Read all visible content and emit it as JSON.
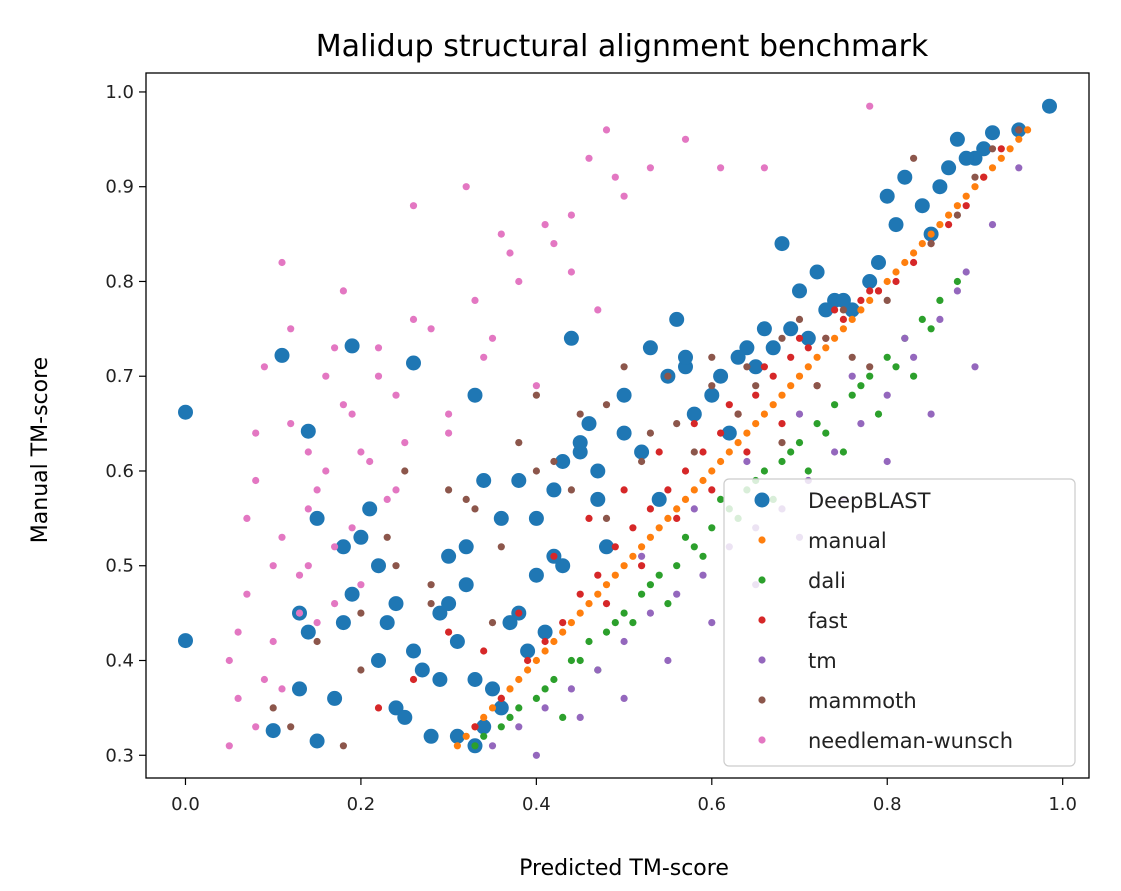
{
  "chart_data": {
    "type": "scatter",
    "title": "Malidup structural alignment benchmark",
    "xlabel": "Predicted TM-score",
    "ylabel": "Manual TM-score",
    "xlim": [
      -0.045,
      1.03
    ],
    "ylim": [
      0.276,
      1.02
    ],
    "xticks": [
      "0.0",
      "0.2",
      "0.4",
      "0.6",
      "0.8",
      "1.0"
    ],
    "xtick_values": [
      0.0,
      0.2,
      0.4,
      0.6,
      0.8,
      1.0
    ],
    "yticks": [
      "0.3",
      "0.4",
      "0.5",
      "0.6",
      "0.7",
      "0.8",
      "0.9",
      "1.0"
    ],
    "ytick_values": [
      0.3,
      0.4,
      0.5,
      0.6,
      0.7,
      0.8,
      0.9,
      1.0
    ],
    "grid": false,
    "legend_position": "lower-right",
    "series": [
      {
        "name": "DeepBLAST",
        "color": "#1f77b4",
        "marker_size": "large",
        "x": [
          0.0,
          0.0,
          0.11,
          0.19,
          0.26,
          0.14,
          0.15,
          0.21,
          0.22,
          0.18,
          0.19,
          0.13,
          0.14,
          0.1,
          0.13,
          0.15,
          0.17,
          0.18,
          0.22,
          0.24,
          0.25,
          0.27,
          0.29,
          0.3,
          0.31,
          0.32,
          0.33,
          0.34,
          0.36,
          0.38,
          0.4,
          0.42,
          0.43,
          0.45,
          0.46,
          0.47,
          0.48,
          0.5,
          0.52,
          0.53,
          0.55,
          0.56,
          0.57,
          0.58,
          0.6,
          0.62,
          0.64,
          0.66,
          0.68,
          0.7,
          0.72,
          0.74,
          0.76,
          0.78,
          0.8,
          0.82,
          0.84,
          0.86,
          0.88,
          0.9,
          0.92,
          0.95,
          0.985,
          0.31,
          0.33,
          0.35,
          0.37,
          0.39,
          0.41,
          0.44,
          0.45,
          0.28,
          0.29,
          0.3,
          0.32,
          0.36,
          0.4,
          0.43,
          0.47,
          0.5,
          0.54,
          0.57,
          0.61,
          0.63,
          0.65,
          0.67,
          0.69,
          0.71,
          0.73,
          0.75,
          0.79,
          0.81,
          0.85,
          0.87,
          0.89,
          0.91,
          0.33,
          0.34,
          0.2,
          0.23,
          0.26,
          0.24,
          0.38,
          0.42
        ],
        "y": [
          0.662,
          0.421,
          0.722,
          0.732,
          0.714,
          0.642,
          0.55,
          0.56,
          0.5,
          0.52,
          0.47,
          0.45,
          0.43,
          0.326,
          0.37,
          0.315,
          0.36,
          0.44,
          0.4,
          0.35,
          0.34,
          0.39,
          0.45,
          0.51,
          0.42,
          0.48,
          0.38,
          0.33,
          0.35,
          0.45,
          0.55,
          0.58,
          0.5,
          0.62,
          0.65,
          0.6,
          0.52,
          0.68,
          0.62,
          0.73,
          0.7,
          0.76,
          0.71,
          0.66,
          0.68,
          0.64,
          0.73,
          0.75,
          0.84,
          0.79,
          0.81,
          0.78,
          0.77,
          0.8,
          0.89,
          0.91,
          0.88,
          0.9,
          0.95,
          0.93,
          0.957,
          0.96,
          0.985,
          0.32,
          0.31,
          0.37,
          0.44,
          0.41,
          0.43,
          0.74,
          0.63,
          0.32,
          0.38,
          0.46,
          0.52,
          0.55,
          0.49,
          0.61,
          0.57,
          0.64,
          0.57,
          0.72,
          0.7,
          0.72,
          0.71,
          0.73,
          0.75,
          0.74,
          0.77,
          0.78,
          0.82,
          0.86,
          0.85,
          0.92,
          0.93,
          0.94,
          0.68,
          0.59,
          0.53,
          0.44,
          0.41,
          0.46,
          0.59,
          0.51
        ]
      },
      {
        "name": "manual",
        "color": "#ff7f0e",
        "marker_size": "small",
        "x": [
          0.31,
          0.32,
          0.33,
          0.34,
          0.35,
          0.36,
          0.37,
          0.38,
          0.39,
          0.4,
          0.41,
          0.42,
          0.43,
          0.44,
          0.45,
          0.46,
          0.47,
          0.48,
          0.49,
          0.5,
          0.51,
          0.52,
          0.53,
          0.54,
          0.55,
          0.56,
          0.57,
          0.58,
          0.59,
          0.6,
          0.61,
          0.62,
          0.63,
          0.64,
          0.65,
          0.66,
          0.67,
          0.68,
          0.69,
          0.7,
          0.71,
          0.72,
          0.73,
          0.74,
          0.75,
          0.76,
          0.77,
          0.78,
          0.79,
          0.8,
          0.81,
          0.82,
          0.83,
          0.84,
          0.85,
          0.86,
          0.87,
          0.88,
          0.89,
          0.9,
          0.91,
          0.92,
          0.93,
          0.94,
          0.95,
          0.96
        ],
        "y": [
          0.31,
          0.32,
          0.33,
          0.34,
          0.35,
          0.36,
          0.37,
          0.38,
          0.39,
          0.4,
          0.41,
          0.42,
          0.43,
          0.44,
          0.45,
          0.46,
          0.47,
          0.48,
          0.49,
          0.5,
          0.51,
          0.52,
          0.53,
          0.54,
          0.55,
          0.56,
          0.57,
          0.58,
          0.59,
          0.6,
          0.61,
          0.62,
          0.63,
          0.64,
          0.65,
          0.66,
          0.67,
          0.68,
          0.69,
          0.7,
          0.71,
          0.72,
          0.73,
          0.74,
          0.75,
          0.76,
          0.77,
          0.78,
          0.79,
          0.8,
          0.81,
          0.82,
          0.83,
          0.84,
          0.85,
          0.86,
          0.87,
          0.88,
          0.89,
          0.9,
          0.91,
          0.92,
          0.93,
          0.94,
          0.95,
          0.96
        ]
      },
      {
        "name": "dali",
        "color": "#2ca02c",
        "marker_size": "small",
        "x": [
          0.33,
          0.36,
          0.38,
          0.4,
          0.42,
          0.44,
          0.46,
          0.48,
          0.5,
          0.52,
          0.54,
          0.56,
          0.58,
          0.6,
          0.62,
          0.64,
          0.66,
          0.68,
          0.7,
          0.72,
          0.74,
          0.76,
          0.78,
          0.8,
          0.82,
          0.84,
          0.86,
          0.88,
          0.34,
          0.37,
          0.41,
          0.45,
          0.49,
          0.53,
          0.57,
          0.61,
          0.65,
          0.69,
          0.73,
          0.77,
          0.81,
          0.85,
          0.43,
          0.47,
          0.51,
          0.55,
          0.59,
          0.63,
          0.67,
          0.71,
          0.75,
          0.79,
          0.83
        ],
        "y": [
          0.31,
          0.33,
          0.35,
          0.36,
          0.38,
          0.4,
          0.42,
          0.43,
          0.45,
          0.47,
          0.49,
          0.5,
          0.52,
          0.54,
          0.56,
          0.58,
          0.6,
          0.61,
          0.63,
          0.65,
          0.67,
          0.68,
          0.7,
          0.72,
          0.74,
          0.76,
          0.78,
          0.8,
          0.32,
          0.34,
          0.37,
          0.4,
          0.44,
          0.48,
          0.53,
          0.57,
          0.59,
          0.62,
          0.64,
          0.69,
          0.71,
          0.75,
          0.34,
          0.39,
          0.44,
          0.46,
          0.51,
          0.55,
          0.57,
          0.6,
          0.62,
          0.66,
          0.7
        ]
      },
      {
        "name": "fast",
        "color": "#d62728",
        "marker_size": "small",
        "x": [
          0.33,
          0.36,
          0.39,
          0.41,
          0.43,
          0.45,
          0.47,
          0.49,
          0.51,
          0.53,
          0.55,
          0.57,
          0.59,
          0.61,
          0.63,
          0.65,
          0.67,
          0.69,
          0.71,
          0.73,
          0.75,
          0.77,
          0.79,
          0.81,
          0.83,
          0.85,
          0.87,
          0.89,
          0.91,
          0.93,
          0.95,
          0.22,
          0.26,
          0.3,
          0.34,
          0.38,
          0.42,
          0.46,
          0.5,
          0.54,
          0.58,
          0.62,
          0.66,
          0.7,
          0.74,
          0.78,
          0.48,
          0.52,
          0.56,
          0.6,
          0.64,
          0.68,
          0.72
        ],
        "y": [
          0.33,
          0.36,
          0.4,
          0.42,
          0.44,
          0.47,
          0.49,
          0.52,
          0.54,
          0.56,
          0.58,
          0.6,
          0.62,
          0.64,
          0.66,
          0.68,
          0.7,
          0.72,
          0.73,
          0.74,
          0.76,
          0.78,
          0.79,
          0.8,
          0.82,
          0.84,
          0.86,
          0.88,
          0.91,
          0.94,
          0.96,
          0.35,
          0.38,
          0.43,
          0.41,
          0.45,
          0.51,
          0.55,
          0.58,
          0.62,
          0.65,
          0.67,
          0.71,
          0.74,
          0.77,
          0.79,
          0.46,
          0.5,
          0.55,
          0.58,
          0.62,
          0.65,
          0.69
        ]
      },
      {
        "name": "tm",
        "color": "#9467bd",
        "marker_size": "small",
        "x": [
          0.35,
          0.38,
          0.41,
          0.44,
          0.47,
          0.5,
          0.53,
          0.56,
          0.59,
          0.62,
          0.65,
          0.68,
          0.71,
          0.74,
          0.77,
          0.8,
          0.83,
          0.86,
          0.89,
          0.92,
          0.95,
          0.4,
          0.45,
          0.5,
          0.55,
          0.6,
          0.65,
          0.7,
          0.75,
          0.8,
          0.85,
          0.9,
          0.52,
          0.58,
          0.64,
          0.7,
          0.76,
          0.82,
          0.88
        ],
        "y": [
          0.31,
          0.33,
          0.35,
          0.37,
          0.39,
          0.42,
          0.45,
          0.47,
          0.49,
          0.52,
          0.54,
          0.56,
          0.59,
          0.62,
          0.65,
          0.68,
          0.72,
          0.76,
          0.81,
          0.86,
          0.92,
          0.3,
          0.34,
          0.36,
          0.4,
          0.44,
          0.48,
          0.53,
          0.57,
          0.61,
          0.66,
          0.71,
          0.51,
          0.56,
          0.61,
          0.66,
          0.7,
          0.74,
          0.79
        ]
      },
      {
        "name": "mammoth",
        "color": "#8c564b",
        "marker_size": "small",
        "x": [
          0.1,
          0.12,
          0.15,
          0.18,
          0.2,
          0.23,
          0.25,
          0.28,
          0.3,
          0.33,
          0.35,
          0.38,
          0.4,
          0.42,
          0.45,
          0.48,
          0.5,
          0.53,
          0.55,
          0.58,
          0.6,
          0.63,
          0.65,
          0.68,
          0.7,
          0.73,
          0.75,
          0.78,
          0.8,
          0.83,
          0.85,
          0.88,
          0.9,
          0.92,
          0.95,
          0.2,
          0.24,
          0.28,
          0.32,
          0.36,
          0.4,
          0.44,
          0.48,
          0.52,
          0.56,
          0.6,
          0.64,
          0.68,
          0.72,
          0.76
        ],
        "y": [
          0.35,
          0.33,
          0.42,
          0.31,
          0.45,
          0.53,
          0.6,
          0.48,
          0.58,
          0.56,
          0.44,
          0.63,
          0.68,
          0.61,
          0.66,
          0.55,
          0.71,
          0.64,
          0.7,
          0.62,
          0.72,
          0.66,
          0.69,
          0.63,
          0.76,
          0.74,
          0.77,
          0.71,
          0.78,
          0.93,
          0.84,
          0.87,
          0.91,
          0.94,
          0.96,
          0.39,
          0.5,
          0.46,
          0.57,
          0.52,
          0.6,
          0.58,
          0.67,
          0.61,
          0.65,
          0.69,
          0.71,
          0.74,
          0.69,
          0.72
        ]
      },
      {
        "name": "needleman-wunsch",
        "color": "#e377c2",
        "marker_size": "small",
        "x": [
          0.05,
          0.06,
          0.07,
          0.08,
          0.09,
          0.1,
          0.11,
          0.12,
          0.13,
          0.14,
          0.15,
          0.16,
          0.17,
          0.18,
          0.19,
          0.2,
          0.21,
          0.22,
          0.23,
          0.24,
          0.25,
          0.26,
          0.28,
          0.3,
          0.32,
          0.34,
          0.36,
          0.38,
          0.4,
          0.42,
          0.44,
          0.46,
          0.48,
          0.49,
          0.5,
          0.53,
          0.57,
          0.61,
          0.66,
          0.78,
          0.06,
          0.07,
          0.08,
          0.09,
          0.1,
          0.11,
          0.12,
          0.13,
          0.14,
          0.15,
          0.16,
          0.17,
          0.18,
          0.19,
          0.2,
          0.22,
          0.24,
          0.26,
          0.3,
          0.33,
          0.35,
          0.37,
          0.41,
          0.44,
          0.47,
          0.05,
          0.08,
          0.11,
          0.14,
          0.17
        ],
        "y": [
          0.31,
          0.43,
          0.55,
          0.64,
          0.38,
          0.5,
          0.82,
          0.75,
          0.45,
          0.62,
          0.58,
          0.7,
          0.52,
          0.79,
          0.66,
          0.48,
          0.61,
          0.73,
          0.57,
          0.68,
          0.63,
          0.88,
          0.75,
          0.66,
          0.9,
          0.72,
          0.85,
          0.8,
          0.69,
          0.84,
          0.87,
          0.93,
          0.96,
          0.91,
          0.89,
          0.92,
          0.95,
          0.92,
          0.92,
          0.985,
          0.36,
          0.47,
          0.59,
          0.71,
          0.42,
          0.53,
          0.65,
          0.49,
          0.56,
          0.44,
          0.6,
          0.73,
          0.67,
          0.54,
          0.62,
          0.7,
          0.58,
          0.76,
          0.64,
          0.78,
          0.74,
          0.83,
          0.86,
          0.81,
          0.77,
          0.4,
          0.33,
          0.37,
          0.5,
          0.46
        ]
      }
    ]
  }
}
